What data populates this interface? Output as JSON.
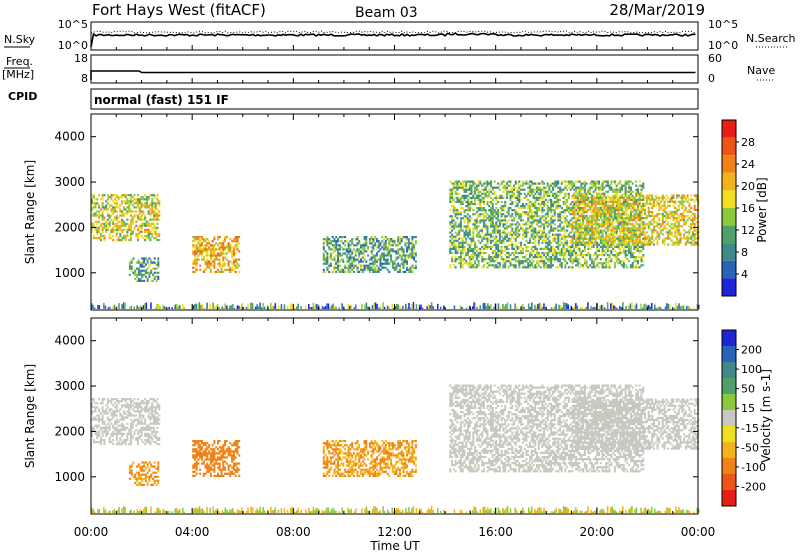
{
  "header": {
    "title": "Fort Hays West (fitACF)",
    "beam": "Beam 03",
    "date": "28/Mar/2019"
  },
  "strips": {
    "sky_label": "N.Sky",
    "sky_ticks": [
      "10^5",
      "10^0"
    ],
    "search_label": "N.Search",
    "search_ticks": [
      "10^5",
      "10^0"
    ],
    "freq_label": "Freq.",
    "freq_unit": "[MHz]",
    "freq_ticks": [
      "18",
      "8"
    ],
    "nave_label": "Nave",
    "nave_ticks": [
      "60",
      "0"
    ],
    "cpid_label": "CPID",
    "cpid_value": "normal (fast) 151 IF"
  },
  "colors": {
    "power": [
      "#1f24d6",
      "#2a63b8",
      "#3e8a8a",
      "#4fa06a",
      "#8cc93c",
      "#f0df1e",
      "#f2b31a",
      "#f08216",
      "#ee5617",
      "#e71f17"
    ],
    "velocity": [
      "#e71f17",
      "#ee5617",
      "#f08216",
      "#f2b31a",
      "#f0df1e",
      "#c8c8c0",
      "#8cc93c",
      "#4fa06a",
      "#3e8a8a",
      "#2a63b8",
      "#1f24d6"
    ],
    "ground": "#c8c8c0"
  },
  "chart_data": [
    {
      "type": "heatmap",
      "panel": "power",
      "ylabel": "Slant Range [km]",
      "ylim": [
        180,
        4500
      ],
      "yticks": [
        "1000",
        "2000",
        "3000",
        "4000"
      ],
      "x_domain_hours": [
        0,
        24
      ],
      "colorbar": {
        "label": "Power [dB]",
        "ticks": [
          "4",
          "8",
          "12",
          "16",
          "20",
          "24",
          "28"
        ],
        "range": [
          0,
          30
        ]
      },
      "echo_regions": [
        {
          "start": "00:00",
          "end": "02:40",
          "range_km": [
            1700,
            2700
          ],
          "power_db": 16
        },
        {
          "start": "01:30",
          "end": "02:40",
          "range_km": [
            800,
            1300
          ],
          "power_db": 10
        },
        {
          "start": "04:00",
          "end": "05:50",
          "range_km": [
            1000,
            1800
          ],
          "power_db": 19
        },
        {
          "start": "09:10",
          "end": "12:50",
          "range_km": [
            1000,
            1800
          ],
          "power_db": 10
        },
        {
          "start": "14:10",
          "end": "21:50",
          "range_km": [
            1100,
            3000
          ],
          "power_db": 12
        },
        {
          "start": "19:00",
          "end": "24:00",
          "range_km": [
            1600,
            2700
          ],
          "power_db": 17
        }
      ]
    },
    {
      "type": "heatmap",
      "panel": "velocity",
      "ylabel": "Slant Range [km]",
      "ylim": [
        180,
        4500
      ],
      "yticks": [
        "1000",
        "2000",
        "3000",
        "4000"
      ],
      "xlabel": "Time UT",
      "xticks": [
        "00:00",
        "04:00",
        "08:00",
        "12:00",
        "16:00",
        "20:00",
        "00:00"
      ],
      "colorbar": {
        "label": "Velocity [m s-1]",
        "ticks": [
          "200",
          "100",
          "50",
          "15",
          "-15",
          "-50",
          "-100",
          "-200"
        ]
      },
      "echo_regions": [
        {
          "start": "00:00",
          "end": "02:40",
          "range_km": [
            1700,
            2700
          ],
          "velocity_ms": 0
        },
        {
          "start": "01:30",
          "end": "02:40",
          "range_km": [
            800,
            1300
          ],
          "velocity_ms": -50
        },
        {
          "start": "04:00",
          "end": "05:50",
          "range_km": [
            1000,
            1800
          ],
          "velocity_ms": -80
        },
        {
          "start": "09:10",
          "end": "12:50",
          "range_km": [
            1000,
            1800
          ],
          "velocity_ms": -50
        },
        {
          "start": "14:10",
          "end": "21:50",
          "range_km": [
            1100,
            3000
          ],
          "velocity_ms": 0
        },
        {
          "start": "19:00",
          "end": "24:00",
          "range_km": [
            1600,
            2700
          ],
          "velocity_ms": 0
        }
      ]
    }
  ]
}
